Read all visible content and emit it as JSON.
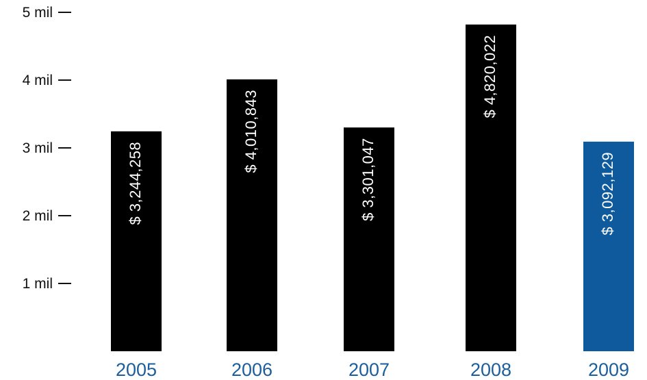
{
  "chart_data": {
    "type": "bar",
    "title": "",
    "xlabel": "",
    "ylabel": "",
    "ylim": [
      0,
      5000000
    ],
    "yticks": [
      {
        "value": 1000000,
        "label": "1 mil"
      },
      {
        "value": 2000000,
        "label": "2 mil"
      },
      {
        "value": 3000000,
        "label": "3 mil"
      },
      {
        "value": 4000000,
        "label": "4 mil"
      },
      {
        "value": 5000000,
        "label": "5 mil"
      }
    ],
    "categories": [
      "2005",
      "2006",
      "2007",
      "2008",
      "2009"
    ],
    "values": [
      3244258,
      4010843,
      3301047,
      4820022,
      3092129
    ],
    "data_labels": [
      "$ 3,244,258",
      "$ 4,010,843",
      "$ 3,301,047",
      "$ 4,820,022",
      "$ 3,092,129"
    ],
    "bar_colors": [
      "#000000",
      "#000000",
      "#000000",
      "#000000",
      "#0e5a9c"
    ],
    "category_label_color": "#1b5e9c",
    "grid": false,
    "legend": "none"
  }
}
